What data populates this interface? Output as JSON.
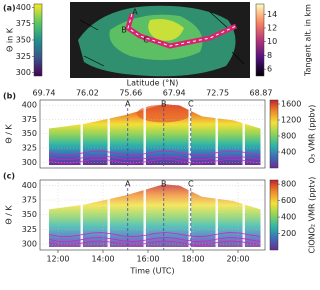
{
  "chart_data": [
    {
      "type": "map",
      "label": "(a)",
      "colorbars": [
        {
          "label": "Θ in K",
          "lim": [
            295,
            405
          ],
          "ticks": [
            300,
            325,
            350,
            375,
            400
          ],
          "colors": [
            "#440154",
            "#3b528b",
            "#21918c",
            "#5ec962",
            "#fde725"
          ]
        },
        {
          "label": "Tangent alt. in km",
          "lim": [
            5,
            15.5
          ],
          "ticks": [
            6,
            8,
            10,
            12,
            14
          ],
          "colors": [
            "#000004",
            "#51127c",
            "#b73779",
            "#fc8961",
            "#fcfdbf"
          ]
        }
      ],
      "annotations": [
        "A",
        "B",
        "C"
      ]
    },
    {
      "type": "heatmap",
      "label": "(b)",
      "x2label": "Latitude (°N)",
      "x2categories": [
        "69.74",
        "76.02",
        "75.66",
        "67.94",
        "72.75",
        "68.87"
      ],
      "ylabel": "Θ / K",
      "ylim": [
        290,
        409
      ],
      "yticks": [
        300,
        325,
        350,
        375,
        400
      ],
      "xlim": [
        11.2,
        21.2
      ],
      "grid": true,
      "colorbar": {
        "label": "O₃ VMR (ppbv)",
        "lim": [
          0,
          1700
        ],
        "ticks": [
          400,
          800,
          1200,
          1600
        ],
        "colors": [
          "#6a2c91",
          "#3b6fb6",
          "#2fb5a8",
          "#8fd35a",
          "#f2e03a",
          "#f08a2c",
          "#c2252a"
        ]
      },
      "annotations": [
        {
          "text": "A",
          "x": 15.1
        },
        {
          "text": "B",
          "x": 16.7
        },
        {
          "text": "C",
          "x": 17.9
        }
      ]
    },
    {
      "type": "heatmap",
      "label": "(c)",
      "xlabel": "Time (UTC)",
      "xlim": [
        11.2,
        21.2
      ],
      "xticks": [
        {
          "value": 12,
          "label": "12:00"
        },
        {
          "value": 14,
          "label": "14:00"
        },
        {
          "value": 16,
          "label": "16:00"
        },
        {
          "value": 18,
          "label": "18:00"
        },
        {
          "value": 20,
          "label": "20:00"
        }
      ],
      "ylabel": "Θ / K",
      "ylim": [
        290,
        409
      ],
      "yticks": [
        300,
        325,
        350,
        375,
        400
      ],
      "grid": true,
      "colorbar": {
        "label": "ClONO₂ VMR (pptv)",
        "lim": [
          0,
          850
        ],
        "ticks": [
          200,
          400,
          600,
          800
        ],
        "colors": [
          "#6a2c91",
          "#3b6fb6",
          "#2fb5a8",
          "#8fd35a",
          "#f2e03a",
          "#f08a2c",
          "#c2252a"
        ]
      },
      "annotations": [
        {
          "text": "A",
          "x": 15.1
        },
        {
          "text": "B",
          "x": 16.7
        },
        {
          "text": "C",
          "x": 17.9
        }
      ]
    }
  ]
}
